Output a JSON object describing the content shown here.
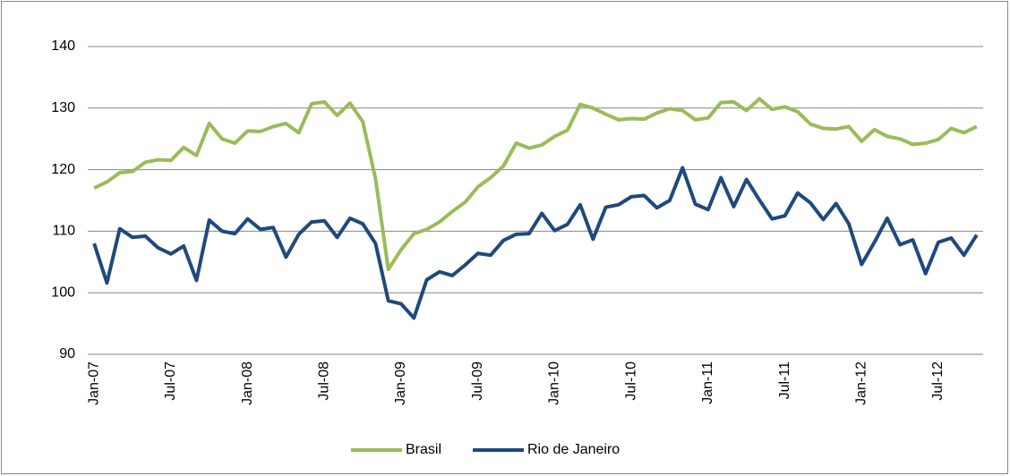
{
  "chart_data": {
    "type": "line",
    "categories": [
      "Jan-07",
      null,
      null,
      null,
      null,
      null,
      "Jul-07",
      null,
      null,
      null,
      null,
      null,
      "Jan-08",
      null,
      null,
      null,
      null,
      null,
      "Jul-08",
      null,
      null,
      null,
      null,
      null,
      "Jan-09",
      null,
      null,
      null,
      null,
      null,
      "Jul-09",
      null,
      null,
      null,
      null,
      null,
      "Jan-10",
      null,
      null,
      null,
      null,
      null,
      "Jul-10",
      null,
      null,
      null,
      null,
      null,
      "Jan-11",
      null,
      null,
      null,
      null,
      null,
      "Jul-11",
      null,
      null,
      null,
      null,
      null,
      "Jan-12",
      null,
      null,
      null,
      null,
      null,
      "Jul-12",
      null,
      null,
      null
    ],
    "series": [
      {
        "name": "Brasil",
        "color": "#9bbb59",
        "values": [
          117,
          118,
          119.5,
          119.7,
          121.2,
          121.6,
          121.5,
          123.6,
          122.3,
          127.5,
          125,
          124.3,
          126.3,
          126.2,
          127,
          127.5,
          126,
          130.7,
          131,
          128.8,
          130.8,
          127.8,
          118.5,
          103.8,
          107,
          109.6,
          110.3,
          111.5,
          113.2,
          114.7,
          117.2,
          118.7,
          120.6,
          124.3,
          123.5,
          124,
          125.4,
          126.4,
          130.6,
          130,
          129,
          128.1,
          128.3,
          128.2,
          129.2,
          129.9,
          129.6,
          128.1,
          128.4,
          130.9,
          131,
          129.6,
          131.5,
          129.8,
          130.2,
          129.4,
          127.4,
          126.7,
          126.6,
          127,
          124.6,
          126.5,
          125.4,
          125,
          124.1,
          124.3,
          124.9,
          126.7,
          126,
          127
        ]
      },
      {
        "name": "Rio de Janeiro",
        "color": "#1f497d",
        "values": [
          108,
          101.6,
          110.4,
          109,
          109.2,
          107.3,
          106.3,
          107.6,
          102,
          111.8,
          110,
          109.6,
          112,
          110.3,
          110.6,
          105.8,
          109.5,
          111.5,
          111.7,
          109,
          112.1,
          111.2,
          108,
          98.7,
          98.2,
          95.9,
          102.1,
          103.4,
          102.8,
          104.5,
          106.4,
          106.1,
          108.5,
          109.5,
          109.6,
          112.9,
          110.1,
          111.1,
          114.3,
          108.7,
          113.9,
          114.3,
          115.6,
          115.8,
          113.8,
          115,
          120.3,
          114.4,
          113.5,
          118.7,
          114,
          118.4,
          115.1,
          112,
          112.5,
          116.2,
          114.6,
          111.9,
          114.5,
          111.2,
          104.6,
          108.2,
          112.1,
          107.8,
          108.6,
          103.1,
          108.2,
          108.9,
          106.1,
          109.4
        ]
      }
    ],
    "ylim": [
      90,
      140
    ],
    "yticks": [
      90,
      100,
      110,
      120,
      130,
      140
    ],
    "grid": true,
    "legend": "bottom"
  }
}
